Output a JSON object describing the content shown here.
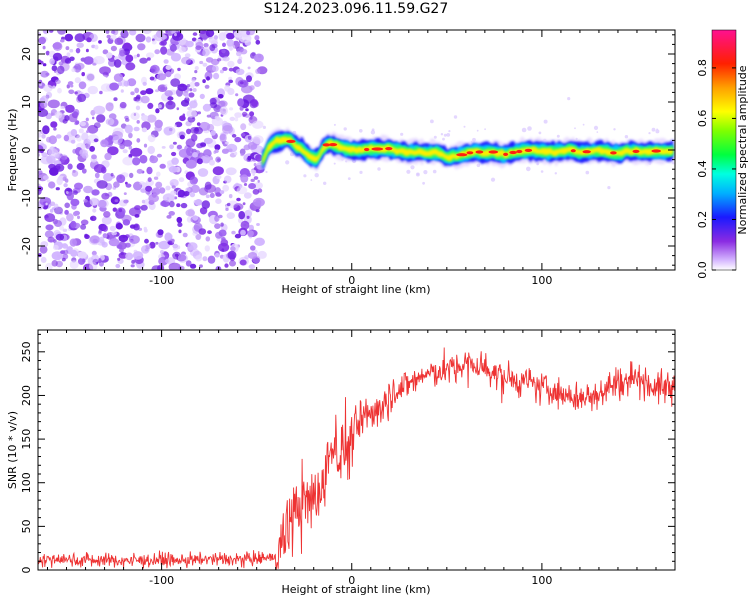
{
  "figure_title": "S124.2023.096.11.59.G27",
  "colors": {
    "snr_line": "#ee3333",
    "spectral_scatter": "#8a3ff0",
    "axis": "#000000"
  },
  "chart_data": [
    {
      "type": "heatmap",
      "title": "",
      "xlabel": "Height of straight line (km)",
      "ylabel": "Frequency (Hz)",
      "xlim": [
        -165,
        170
      ],
      "ylim": [
        -25,
        25
      ],
      "x_ticks": [
        -100,
        0,
        100
      ],
      "x_tick_labels": [
        "-100",
        "0",
        "100"
      ],
      "y_ticks": [
        -20,
        -10,
        0,
        10,
        20
      ],
      "y_tick_labels": [
        "-20",
        "-10",
        "0",
        "10",
        "20"
      ],
      "grid": false,
      "noise_region_x": [
        -165,
        -47
      ],
      "ridge": {
        "x": [
          -47,
          -44,
          -40,
          -36,
          -33,
          -30,
          -26,
          -22,
          -18,
          -15,
          -12,
          -8,
          -4,
          0,
          5,
          10,
          15,
          20,
          25,
          30,
          35,
          40,
          45,
          50,
          55,
          60,
          65,
          70,
          75,
          80,
          85,
          90,
          95,
          100,
          105,
          110,
          115,
          120,
          125,
          130,
          135,
          140,
          145,
          150,
          155,
          160,
          165,
          170
        ],
        "y": [
          -2.5,
          0.5,
          1.8,
          2.0,
          2.2,
          1.0,
          0.2,
          -1.5,
          -2.0,
          0.5,
          1.5,
          0.8,
          0.3,
          0.0,
          0.0,
          0.2,
          0.2,
          0.3,
          -0.2,
          -0.5,
          -0.3,
          -0.6,
          -0.4,
          -1.5,
          -1.2,
          -0.8,
          -0.3,
          -0.6,
          -0.4,
          -1.0,
          -0.5,
          -0.2,
          0.0,
          -0.3,
          -0.4,
          -0.2,
          0.0,
          -0.5,
          -0.3,
          -0.2,
          -0.4,
          -0.8,
          -0.2,
          -0.3,
          -0.5,
          -0.2,
          -0.3,
          -0.1
        ]
      },
      "colorbar": {
        "label": "Normalized spectral amplitude",
        "range": [
          0.0,
          0.95
        ],
        "ticks": [
          0.0,
          0.2,
          0.4,
          0.6,
          0.8
        ],
        "tick_labels": [
          "0.0",
          "0.2",
          "0.4",
          "0.6",
          "0.8"
        ],
        "colormap": "hsv"
      }
    },
    {
      "type": "line",
      "title": "",
      "xlabel": "Height of straight line (km)",
      "ylabel": "SNR (10 * v/v)",
      "xlim": [
        -165,
        170
      ],
      "ylim": [
        0,
        275
      ],
      "x_ticks": [
        -100,
        0,
        100
      ],
      "x_tick_labels": [
        "-100",
        "0",
        "100"
      ],
      "y_ticks": [
        0,
        50,
        100,
        150,
        200,
        250
      ],
      "y_tick_labels": [
        "0",
        "50",
        "100",
        "150",
        "200",
        "250"
      ],
      "grid": false,
      "series": [
        {
          "x": [
            -165,
            -150,
            -130,
            -110,
            -90,
            -70,
            -50,
            -40,
            -35,
            -30,
            -25,
            -20,
            -15,
            -10,
            -5,
            0,
            5,
            10,
            20,
            30,
            40,
            50,
            60,
            70,
            80,
            90,
            100,
            110,
            120,
            130,
            140,
            150,
            160,
            170
          ],
          "y": [
            12,
            12,
            11,
            11,
            11,
            12,
            12,
            15,
            45,
            65,
            75,
            80,
            95,
            150,
            130,
            150,
            170,
            180,
            200,
            215,
            225,
            230,
            235,
            232,
            220,
            215,
            210,
            200,
            195,
            205,
            215,
            222,
            210,
            210
          ]
        }
      ]
    }
  ]
}
